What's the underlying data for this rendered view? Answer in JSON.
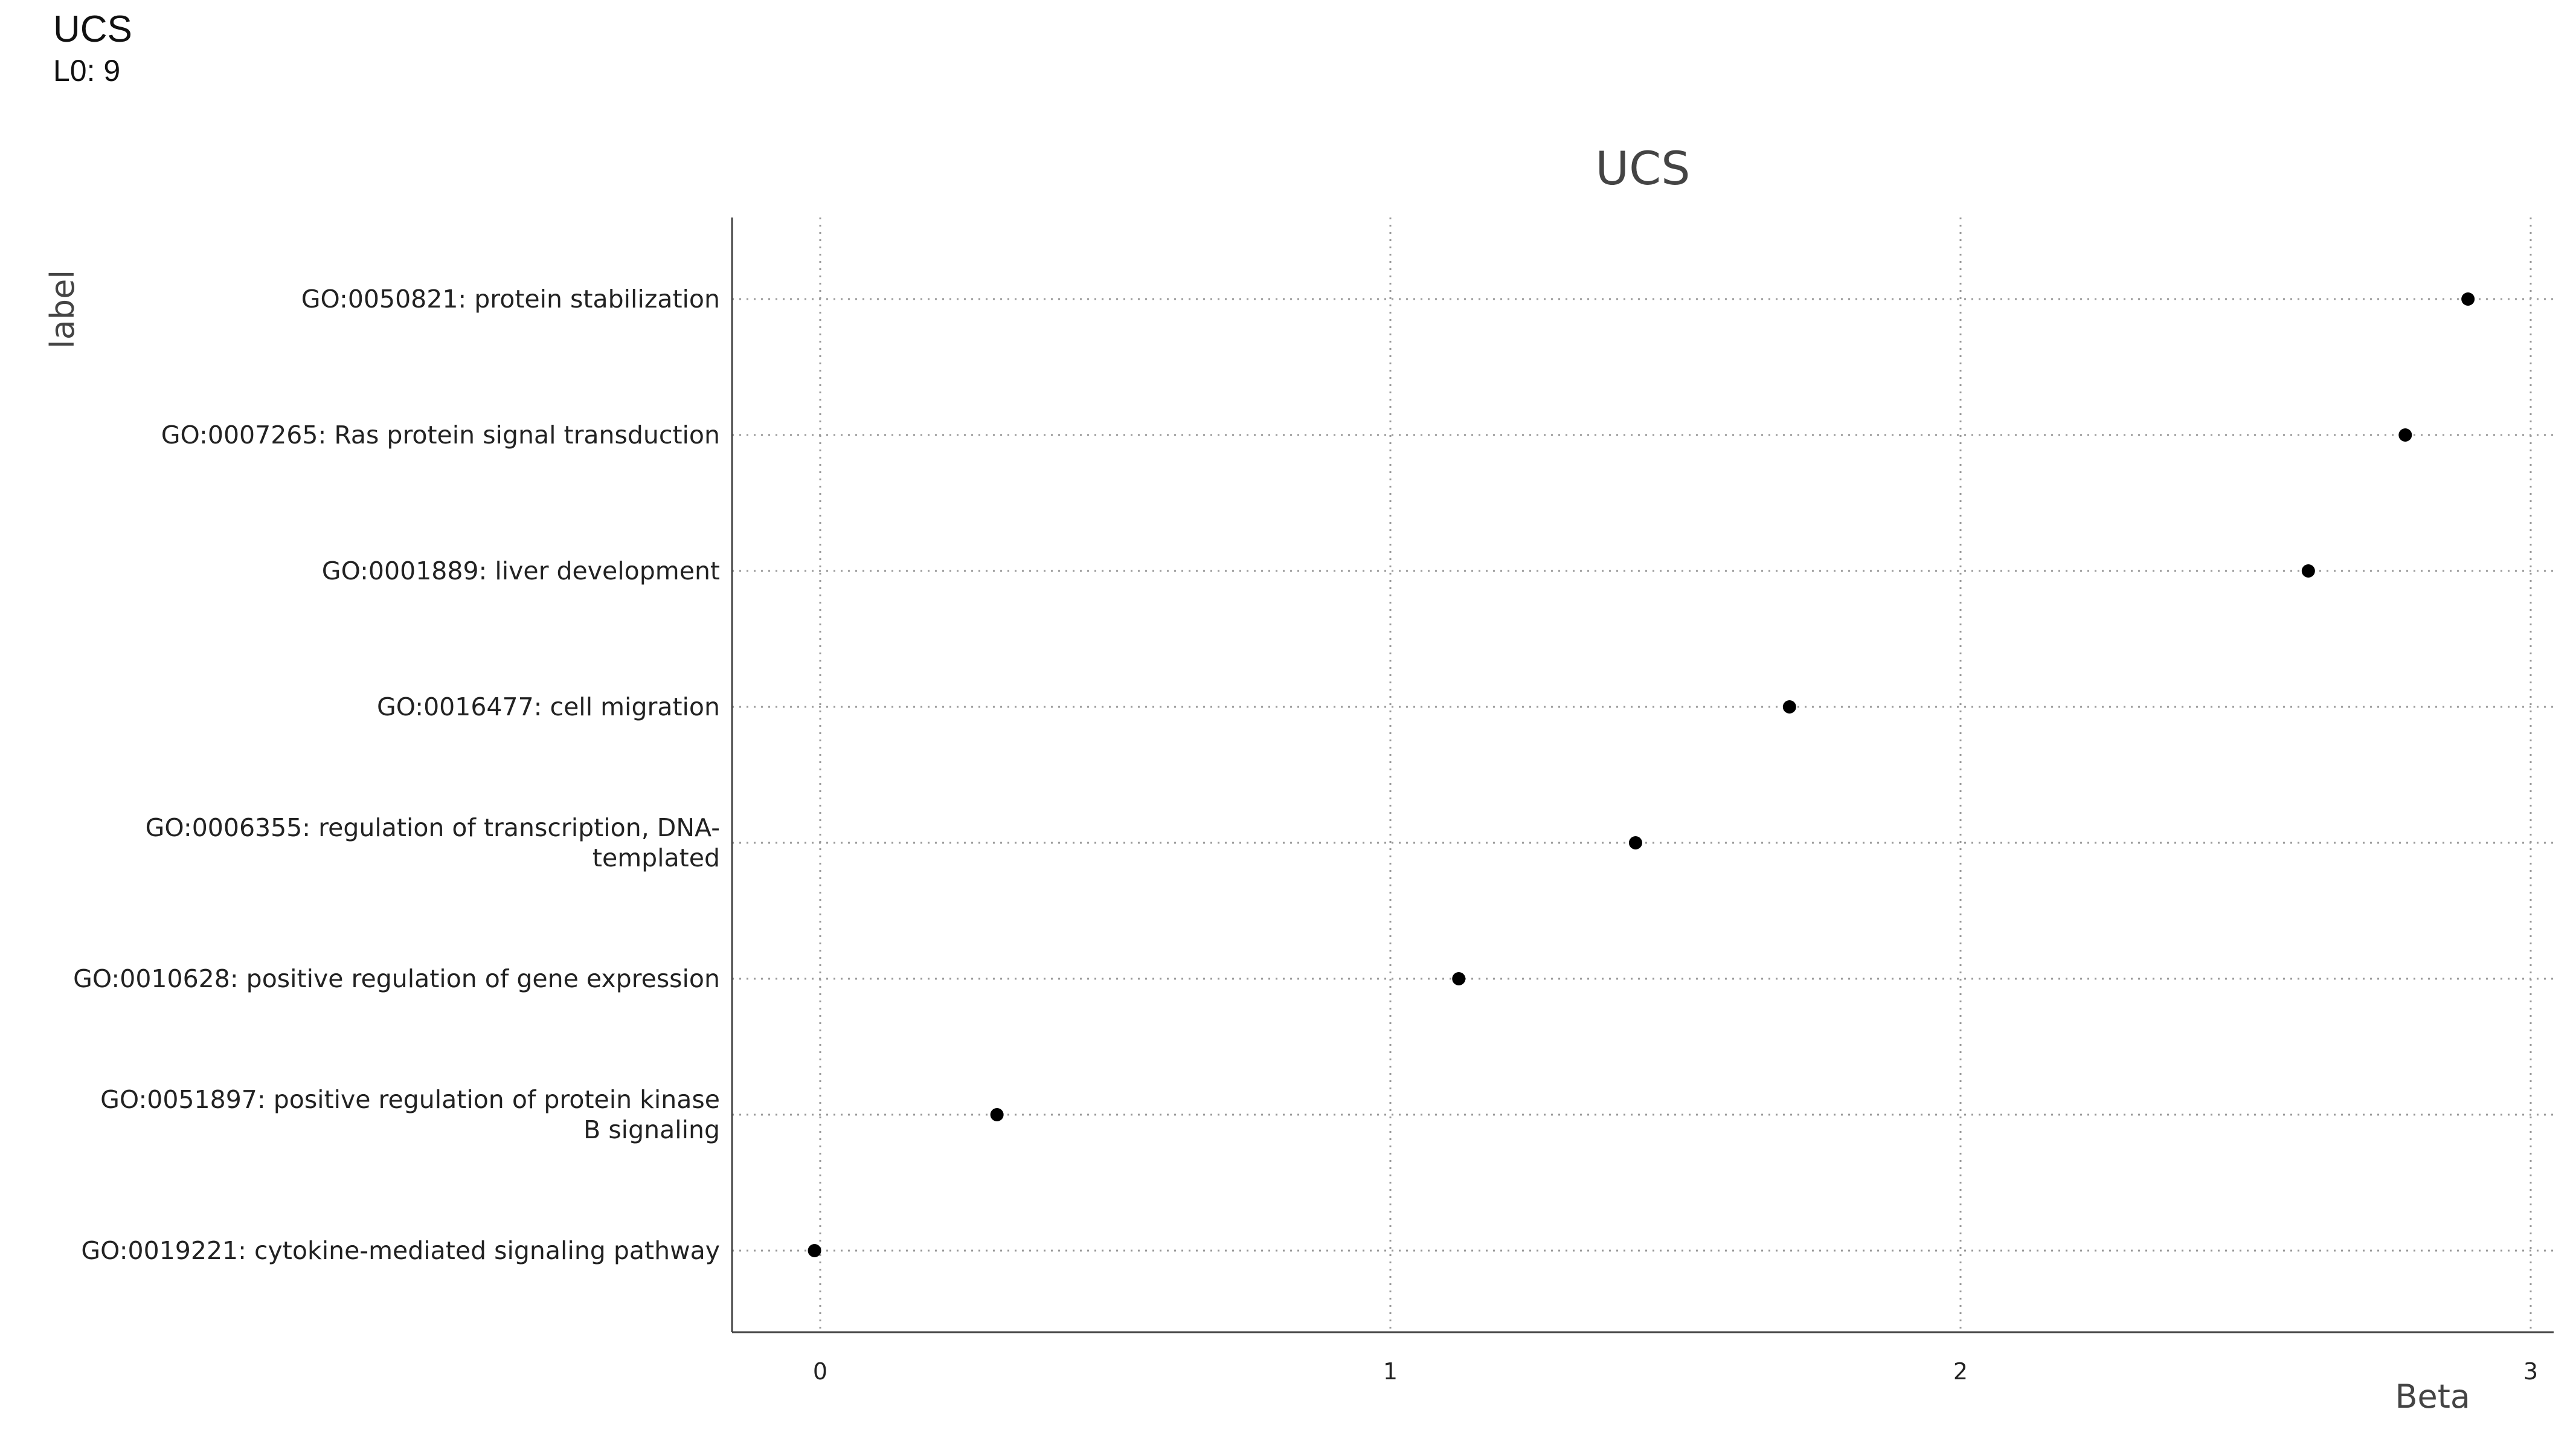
{
  "header": {
    "title": "UCS",
    "subtitle": "L0: 9"
  },
  "chart_data": {
    "type": "scatter",
    "title": "UCS",
    "xlabel": "Beta",
    "ylabel": "label",
    "xlim": [
      -0.15,
      3.04
    ],
    "xticks": [
      0,
      1,
      2,
      3
    ],
    "grid": "dotted",
    "categories": [
      [
        "GO:0050821: protein stabilization"
      ],
      [
        "GO:0007265: Ras protein signal transduction"
      ],
      [
        "GO:0001889: liver development"
      ],
      [
        "GO:0016477: cell migration"
      ],
      [
        "GO:0006355: regulation of transcription, DNA-",
        "templated"
      ],
      [
        "GO:0010628: positive regulation of gene expression"
      ],
      [
        "GO:0051897: positive regulation of protein kinase",
        "B signaling"
      ],
      [
        "GO:0019221: cytokine-mediated signaling pathway"
      ]
    ],
    "values": [
      2.89,
      2.78,
      2.61,
      1.7,
      1.43,
      1.12,
      0.31,
      -0.01
    ],
    "colors": {
      "point": "#000000",
      "grid": "#9a9a9a",
      "axis": "#444444",
      "text": "#222222",
      "title": "#444444"
    }
  }
}
